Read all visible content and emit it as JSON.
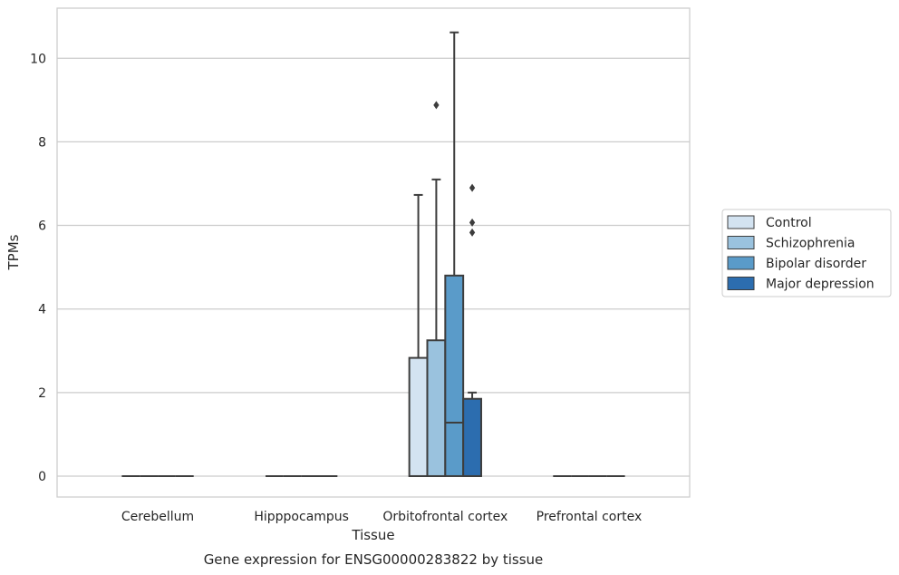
{
  "chart_data": {
    "type": "box",
    "caption": "Gene expression for ENSG00000283822 by tissue",
    "xlabel": "Tissue",
    "ylabel": "TPMs",
    "ylim": [
      -0.5,
      11.2
    ],
    "yticks": [
      0,
      2,
      4,
      6,
      8,
      10
    ],
    "grid": "horizontal",
    "legend_position": "right",
    "categories": [
      "Cerebellum",
      "Hipppocampus",
      "Orbitofrontal cortex",
      "Prefrontal cortex"
    ],
    "series": [
      {
        "name": "Control",
        "color": "#d3e3f1",
        "boxes": [
          {
            "category": "Cerebellum",
            "min": 0,
            "q1": 0,
            "median": 0,
            "q3": 0,
            "max": 0,
            "outliers": []
          },
          {
            "category": "Hipppocampus",
            "min": 0,
            "q1": 0,
            "median": 0,
            "q3": 0,
            "max": 0,
            "outliers": []
          },
          {
            "category": "Orbitofrontal cortex",
            "min": 0,
            "q1": 0,
            "median": 0,
            "q3": 2.83,
            "max": 6.73,
            "outliers": []
          },
          {
            "category": "Prefrontal cortex",
            "min": 0,
            "q1": 0,
            "median": 0,
            "q3": 0,
            "max": 0,
            "outliers": []
          }
        ]
      },
      {
        "name": "Schizophrenia",
        "color": "#9ac2de",
        "boxes": [
          {
            "category": "Cerebellum",
            "min": 0,
            "q1": 0,
            "median": 0,
            "q3": 0,
            "max": 0,
            "outliers": []
          },
          {
            "category": "Hipppocampus",
            "min": 0,
            "q1": 0,
            "median": 0,
            "q3": 0,
            "max": 0,
            "outliers": []
          },
          {
            "category": "Orbitofrontal cortex",
            "min": 0,
            "q1": 0,
            "median": 0,
            "q3": 3.25,
            "max": 7.1,
            "outliers": [
              8.88
            ]
          },
          {
            "category": "Prefrontal cortex",
            "min": 0,
            "q1": 0,
            "median": 0,
            "q3": 0,
            "max": 0,
            "outliers": []
          }
        ]
      },
      {
        "name": "Bipolar disorder",
        "color": "#5a9bc9",
        "boxes": [
          {
            "category": "Cerebellum",
            "min": 0,
            "q1": 0,
            "median": 0,
            "q3": 0,
            "max": 0,
            "outliers": []
          },
          {
            "category": "Hipppocampus",
            "min": 0,
            "q1": 0,
            "median": 0,
            "q3": 0,
            "max": 0,
            "outliers": []
          },
          {
            "category": "Orbitofrontal cortex",
            "min": 0,
            "q1": 0,
            "median": 1.28,
            "q3": 4.8,
            "max": 10.62,
            "outliers": []
          },
          {
            "category": "Prefrontal cortex",
            "min": 0,
            "q1": 0,
            "median": 0,
            "q3": 0,
            "max": 0,
            "outliers": []
          }
        ]
      },
      {
        "name": "Major depression",
        "color": "#2c6daf",
        "boxes": [
          {
            "category": "Cerebellum",
            "min": 0,
            "q1": 0,
            "median": 0,
            "q3": 0,
            "max": 0,
            "outliers": []
          },
          {
            "category": "Hipppocampus",
            "min": 0,
            "q1": 0,
            "median": 0,
            "q3": 0,
            "max": 0,
            "outliers": []
          },
          {
            "category": "Orbitofrontal cortex",
            "min": 0,
            "q1": 0,
            "median": 0,
            "q3": 1.85,
            "max": 2.0,
            "outliers": [
              5.83,
              6.07,
              6.9
            ]
          },
          {
            "category": "Prefrontal cortex",
            "min": 0,
            "q1": 0,
            "median": 0,
            "q3": 0,
            "max": 0,
            "outliers": []
          }
        ]
      }
    ]
  }
}
